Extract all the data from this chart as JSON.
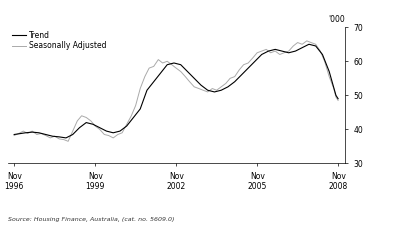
{
  "ylabel_right": "'000",
  "source_text": "Source: Housing Finance, Australia, (cat. no. 5609.0)",
  "legend_entries": [
    "Trend",
    "Seasonally Adjusted"
  ],
  "trend_color": "#000000",
  "sa_color": "#aaaaaa",
  "ylim": [
    30,
    70
  ],
  "yticks": [
    30,
    40,
    50,
    60,
    70
  ],
  "xtick_years": [
    1996,
    1999,
    2002,
    2005,
    2008
  ],
  "background_color": "#ffffff",
  "xlim_left": 1996.6,
  "xlim_right": 2009.1,
  "trend_data": [
    [
      1996.83,
      38.5
    ],
    [
      1997.0,
      38.7
    ],
    [
      1997.25,
      39.0
    ],
    [
      1997.5,
      39.2
    ],
    [
      1997.75,
      39.0
    ],
    [
      1998.0,
      38.5
    ],
    [
      1998.25,
      38.0
    ],
    [
      1998.5,
      37.8
    ],
    [
      1998.75,
      37.5
    ],
    [
      1999.0,
      38.5
    ],
    [
      1999.25,
      40.5
    ],
    [
      1999.5,
      42.0
    ],
    [
      1999.75,
      41.5
    ],
    [
      2000.0,
      40.5
    ],
    [
      2000.25,
      39.5
    ],
    [
      2000.5,
      39.0
    ],
    [
      2000.75,
      39.5
    ],
    [
      2001.0,
      41.0
    ],
    [
      2001.25,
      43.5
    ],
    [
      2001.5,
      46.0
    ],
    [
      2001.75,
      51.5
    ],
    [
      2002.0,
      54.0
    ],
    [
      2002.25,
      56.5
    ],
    [
      2002.5,
      59.0
    ],
    [
      2002.75,
      59.5
    ],
    [
      2003.0,
      59.0
    ],
    [
      2003.25,
      57.0
    ],
    [
      2003.5,
      55.0
    ],
    [
      2003.75,
      53.0
    ],
    [
      2004.0,
      51.5
    ],
    [
      2004.25,
      51.0
    ],
    [
      2004.5,
      51.5
    ],
    [
      2004.75,
      52.5
    ],
    [
      2005.0,
      54.0
    ],
    [
      2005.25,
      56.0
    ],
    [
      2005.5,
      58.0
    ],
    [
      2005.75,
      60.0
    ],
    [
      2006.0,
      62.0
    ],
    [
      2006.25,
      63.0
    ],
    [
      2006.5,
      63.5
    ],
    [
      2006.75,
      63.0
    ],
    [
      2007.0,
      62.5
    ],
    [
      2007.25,
      63.0
    ],
    [
      2007.5,
      64.0
    ],
    [
      2007.75,
      65.0
    ],
    [
      2008.0,
      64.5
    ],
    [
      2008.25,
      62.0
    ],
    [
      2008.5,
      57.0
    ],
    [
      2008.75,
      50.0
    ],
    [
      2008.83,
      49.0
    ]
  ],
  "sa_data": [
    [
      1996.83,
      38.2
    ],
    [
      1997.0,
      38.8
    ],
    [
      1997.17,
      39.5
    ],
    [
      1997.33,
      38.8
    ],
    [
      1997.5,
      39.5
    ],
    [
      1997.67,
      38.5
    ],
    [
      1997.83,
      38.8
    ],
    [
      1998.0,
      38.2
    ],
    [
      1998.17,
      37.5
    ],
    [
      1998.33,
      38.0
    ],
    [
      1998.5,
      37.2
    ],
    [
      1998.67,
      37.0
    ],
    [
      1998.83,
      36.5
    ],
    [
      1999.0,
      39.5
    ],
    [
      1999.17,
      42.5
    ],
    [
      1999.33,
      44.0
    ],
    [
      1999.5,
      43.5
    ],
    [
      1999.67,
      42.5
    ],
    [
      1999.83,
      41.0
    ],
    [
      2000.0,
      40.0
    ],
    [
      2000.17,
      38.5
    ],
    [
      2000.33,
      38.2
    ],
    [
      2000.5,
      37.5
    ],
    [
      2000.67,
      38.5
    ],
    [
      2000.83,
      39.0
    ],
    [
      2001.0,
      41.5
    ],
    [
      2001.17,
      44.0
    ],
    [
      2001.33,
      47.0
    ],
    [
      2001.5,
      52.0
    ],
    [
      2001.67,
      55.5
    ],
    [
      2001.83,
      58.0
    ],
    [
      2002.0,
      58.5
    ],
    [
      2002.17,
      60.5
    ],
    [
      2002.33,
      59.5
    ],
    [
      2002.5,
      60.0
    ],
    [
      2002.67,
      59.0
    ],
    [
      2002.83,
      58.0
    ],
    [
      2003.0,
      57.0
    ],
    [
      2003.17,
      55.5
    ],
    [
      2003.33,
      54.0
    ],
    [
      2003.5,
      52.5
    ],
    [
      2003.67,
      52.0
    ],
    [
      2003.83,
      51.5
    ],
    [
      2004.0,
      51.0
    ],
    [
      2004.17,
      52.0
    ],
    [
      2004.33,
      51.5
    ],
    [
      2004.5,
      52.5
    ],
    [
      2004.67,
      53.5
    ],
    [
      2004.83,
      55.0
    ],
    [
      2005.0,
      55.5
    ],
    [
      2005.17,
      57.5
    ],
    [
      2005.33,
      59.0
    ],
    [
      2005.5,
      59.5
    ],
    [
      2005.67,
      61.0
    ],
    [
      2005.83,
      62.5
    ],
    [
      2006.0,
      63.0
    ],
    [
      2006.17,
      63.5
    ],
    [
      2006.33,
      62.5
    ],
    [
      2006.5,
      63.0
    ],
    [
      2006.67,
      62.0
    ],
    [
      2006.83,
      62.5
    ],
    [
      2007.0,
      63.0
    ],
    [
      2007.17,
      64.5
    ],
    [
      2007.33,
      65.5
    ],
    [
      2007.5,
      65.0
    ],
    [
      2007.67,
      66.0
    ],
    [
      2007.83,
      65.5
    ],
    [
      2008.0,
      65.0
    ],
    [
      2008.17,
      63.0
    ],
    [
      2008.33,
      60.0
    ],
    [
      2008.5,
      55.5
    ],
    [
      2008.67,
      52.0
    ],
    [
      2008.75,
      49.5
    ],
    [
      2008.83,
      48.5
    ]
  ]
}
